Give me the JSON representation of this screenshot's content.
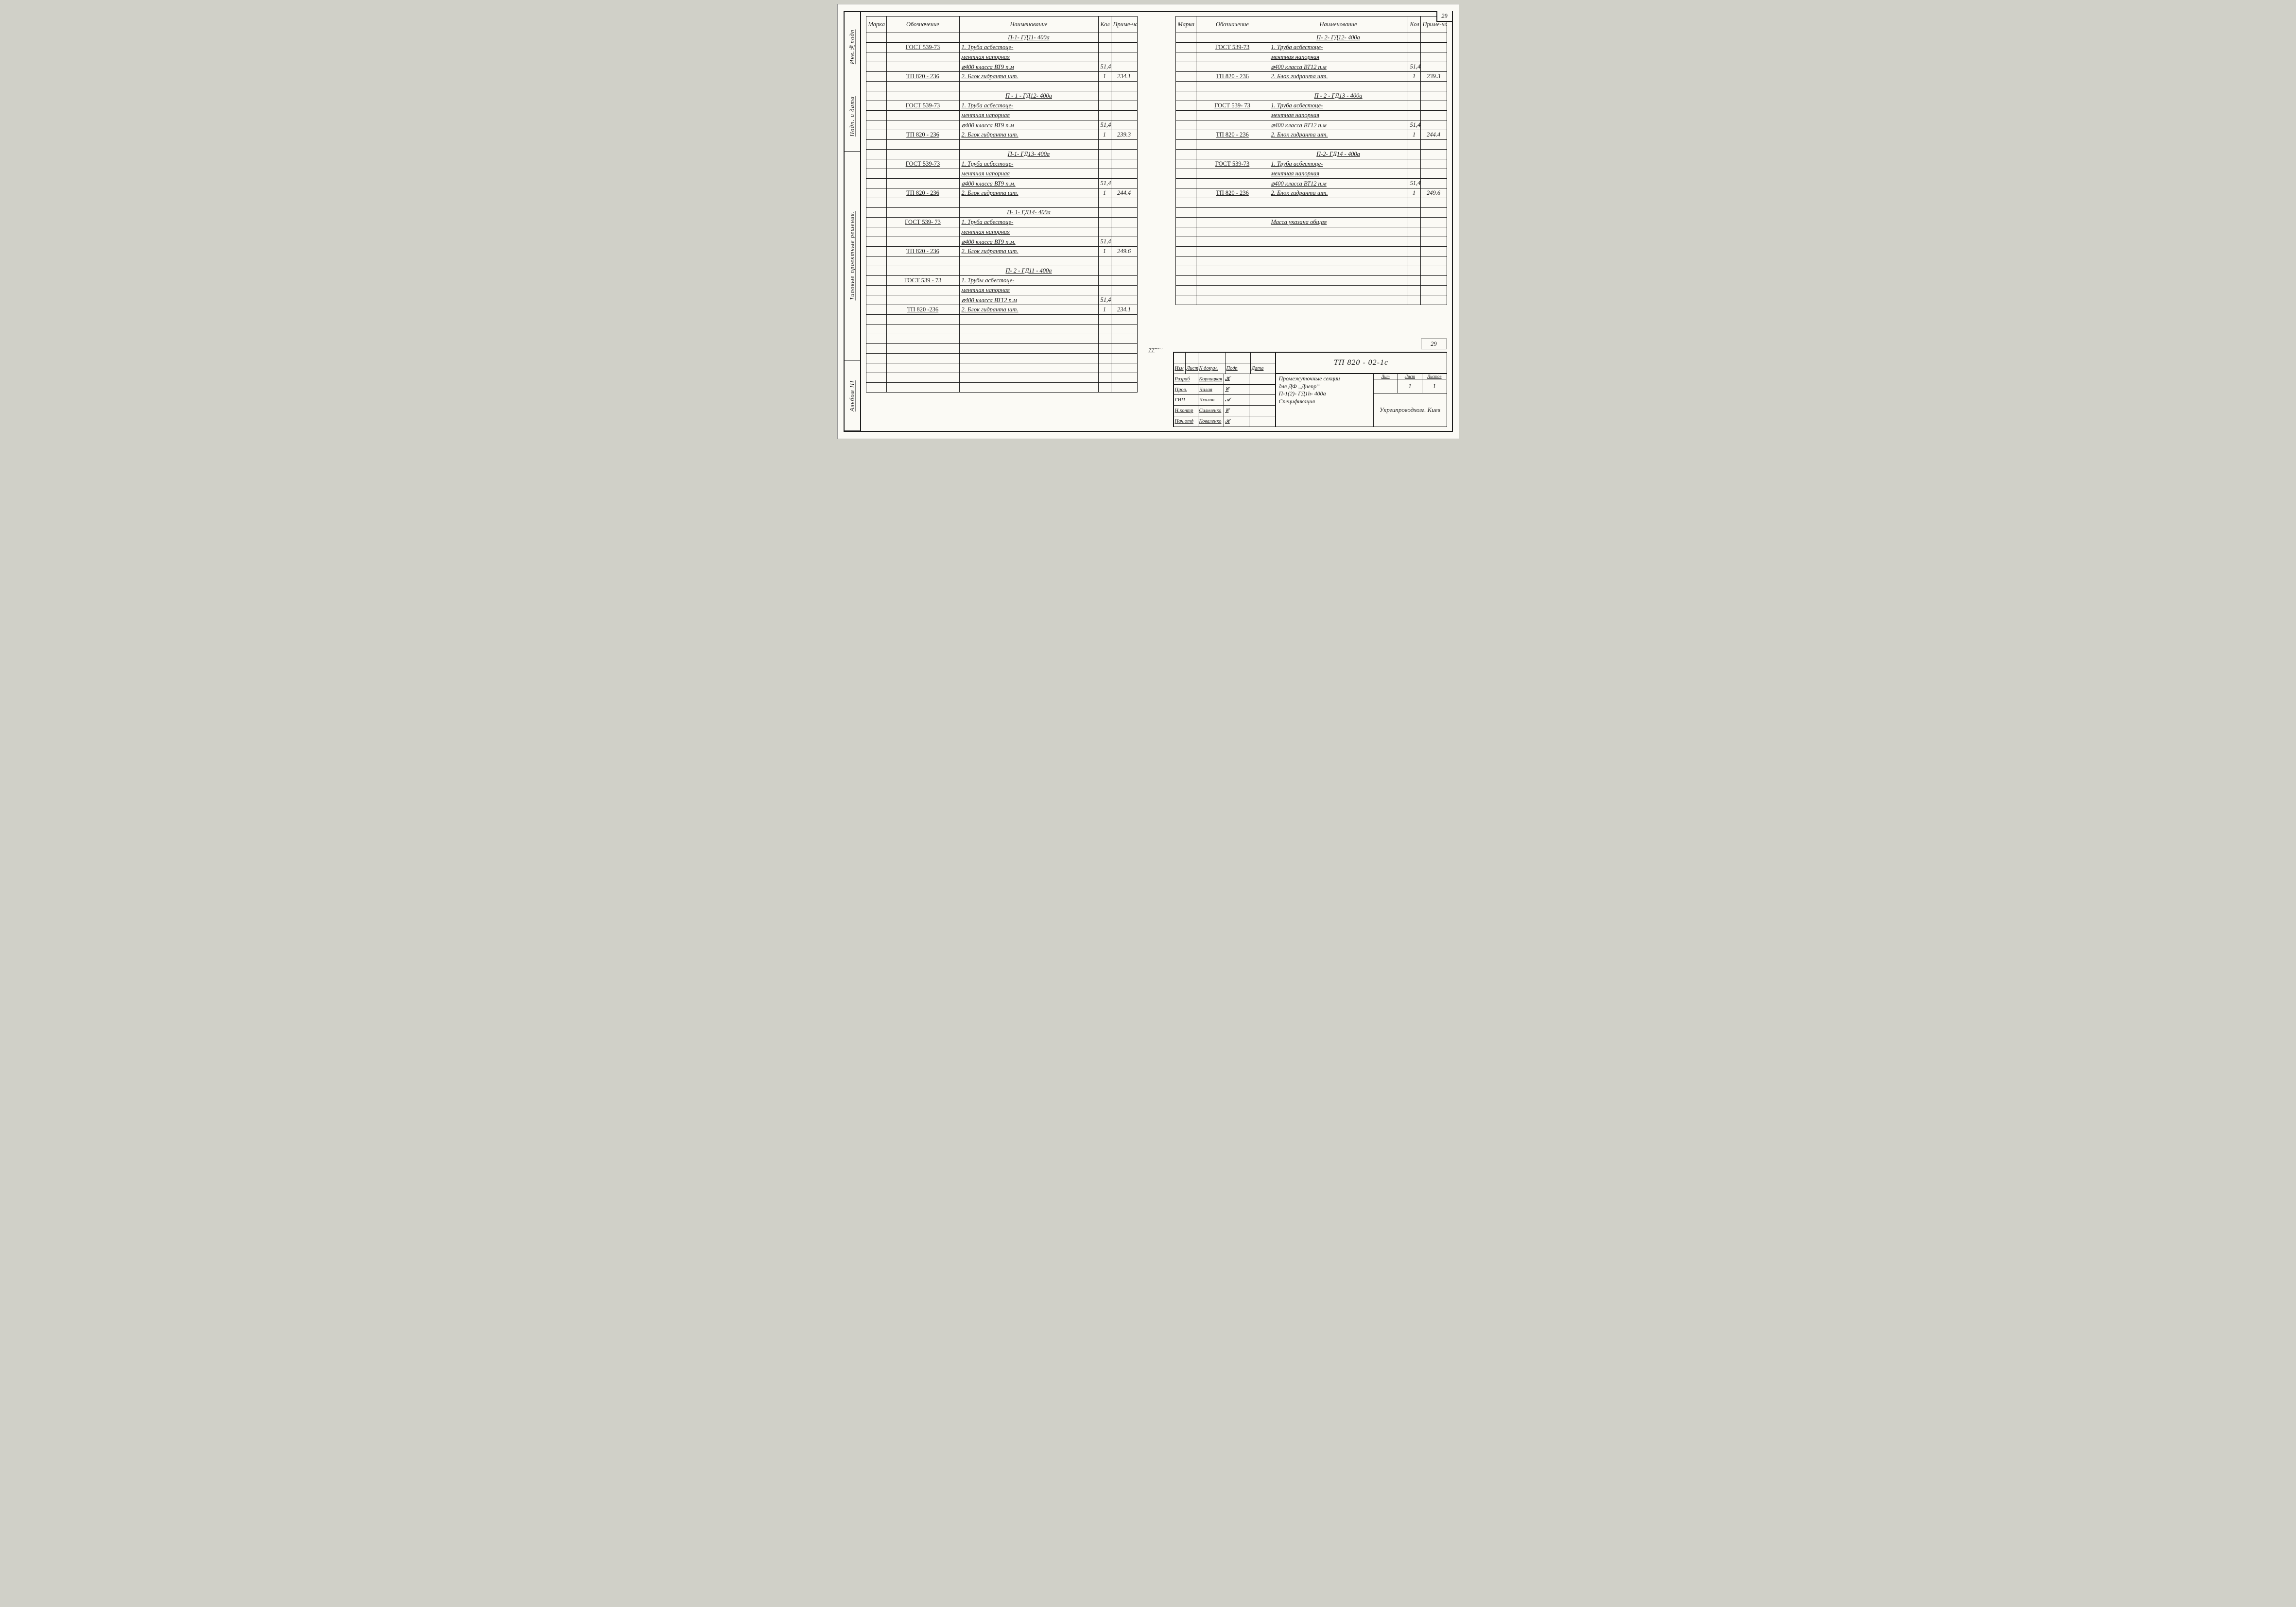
{
  "page_number": "29",
  "rail": [
    "Инв.№подп",
    "Подп. и дата",
    "Типовые проектные решения.",
    "Альбом III"
  ],
  "gutter_text": "7776/з",
  "headers": {
    "marka": "Марка",
    "oboz": "Обозначение",
    "naim": "Наименование",
    "kol": "Кол",
    "prim": "Приме-чание"
  },
  "left_rows": [
    {
      "naim": "П-1- ГД11- 400а",
      "cls": "title"
    },
    {
      "oboz": "ГОСТ 539-73",
      "naim": "1. Труба асбестоце-",
      "u": true
    },
    {
      "naim": "ментная напорная",
      "u": true
    },
    {
      "naim": "⌀400 класса ВТ9  п.м",
      "kol": "51,48",
      "u": true
    },
    {
      "oboz": "ТП 820 - 236",
      "naim": "2. Блок гидранта  шт.",
      "kol": "1",
      "prim": "234.1",
      "u": true
    },
    {},
    {
      "naim": "П - 1 - ГД12- 400а",
      "cls": "title"
    },
    {
      "oboz": "ГОСТ 539-73",
      "naim": "1. Труба асбестоце-",
      "u": true
    },
    {
      "naim": "ментная напорная",
      "u": true
    },
    {
      "naim": "⌀400 класса ВТ9  п.м",
      "kol": "51,48",
      "u": true
    },
    {
      "oboz": "ТП 820 - 236",
      "naim": "2. Блок гидранта  шт.",
      "kol": "1",
      "prim": "239.3",
      "u": true
    },
    {},
    {
      "naim": "П-1- ГД13- 400а",
      "cls": "title"
    },
    {
      "oboz": "ГОСТ 539-73",
      "naim": "1. Труба асбестоце-",
      "u": true
    },
    {
      "naim": "ментная напорная",
      "u": true
    },
    {
      "naim": "⌀400 класса ВТ9  п.м.",
      "kol": "51,48",
      "u": true
    },
    {
      "oboz": "ТП 820 - 236",
      "naim": "2. Блок гидранта  шт.",
      "kol": "1",
      "prim": "244.4",
      "u": true
    },
    {},
    {
      "naim": "П- 1- ГД14-  400а",
      "cls": "title"
    },
    {
      "oboz": "ГОСТ 539- 73",
      "naim": "1. Труба асбестоце-",
      "u": true
    },
    {
      "naim": "ментная напорная",
      "u": true
    },
    {
      "naim": "⌀400 класса ВТ9  п.м.",
      "kol": "51,48",
      "u": true
    },
    {
      "oboz": "ТП 820 - 236",
      "naim": "2. Блок гидранта  шт.",
      "kol": "1",
      "prim": "249.6",
      "u": true
    },
    {},
    {
      "naim": "П- 2 - ГД11 - 400а",
      "cls": "title"
    },
    {
      "oboz": "ГОСТ 539 - 73",
      "naim": "1. Трубы асбестоце-",
      "u": true
    },
    {
      "naim": "ментная напорная",
      "u": true
    },
    {
      "naim": "⌀400  класса ВТ12 п.м",
      "kol": "51,48",
      "u": true
    },
    {
      "oboz": "ТП 820 -236",
      "naim": "2. Блок гидранта  шт.",
      "kol": "1",
      "prim": "234.1",
      "u": true
    },
    {}
  ],
  "right_rows": [
    {
      "naim": "П- 2- ГД12- 400а",
      "cls": "title"
    },
    {
      "oboz": "ГОСТ 539-73",
      "naim": "1. Труба асбестоце-",
      "u": true
    },
    {
      "naim": "ментная напорная",
      "u": true
    },
    {
      "naim": "⌀400 класса ВТ12  п.м",
      "kol": "51,48",
      "u": true
    },
    {
      "oboz": "ТП 820 - 236",
      "naim": "2. Блок гидранта  шт.",
      "kol": "1",
      "prim": "239.3",
      "u": true
    },
    {},
    {
      "naim": "П - 2 - ГД13 - 400а",
      "cls": "title"
    },
    {
      "oboz": "ГОСТ 539- 73",
      "naim": "1. Труба асбестоце-",
      "u": true
    },
    {
      "naim": "ментная напорная",
      "u": true
    },
    {
      "naim": "⌀400  класса ВТ12  п.м",
      "kol": "51,48",
      "u": true
    },
    {
      "oboz": "ТП 820 - 236",
      "naim": "2. Блок гидранта  шт.",
      "kol": "1",
      "prim": "244.4",
      "u": true
    },
    {},
    {
      "naim": "П-2- ГД14 - 400а",
      "cls": "title"
    },
    {
      "oboz": "ГОСТ 539-73",
      "naim": "1. Труба  асбестоце-",
      "u": true
    },
    {
      "naim": "ментная  напорная",
      "u": true
    },
    {
      "naim": "⌀400 класса  ВТ12 п.м",
      "kol": "51,48",
      "u": true
    },
    {
      "oboz": "ТП  820 - 236",
      "naim": "2. Блок гидранта  шт.",
      "kol": "1",
      "prim": "249.6",
      "u": true
    },
    {},
    {},
    {
      "naim": "Масса указана общая",
      "u": true
    },
    {},
    {}
  ],
  "sheet_num_overlay": "29",
  "titleblock": {
    "code": "ТП   820 - 02-1с",
    "title_lines": [
      "Промежуточные секции",
      "для  ДФ „Днепр”",
      "П-1(2)- ГД1h- 400а",
      "Спецификация"
    ],
    "meta": {
      "lit": "Лит",
      "list": "Лист",
      "listov": "Листов",
      "list_val": "1",
      "listov_val": "1"
    },
    "org_lines": [
      "Укргипроводхоз",
      "г. Киев"
    ],
    "sign_head": {
      "izm": "Изм",
      "list": "Лист",
      "doc": "N докум.",
      "sign": "Подп",
      "date": "Дата"
    },
    "sign_rows": [
      {
        "role": "Разраб",
        "name": "Корницкая",
        "sig": "𝓚"
      },
      {
        "role": "Пров.",
        "name": "Чалая",
        "sig": "𝓒"
      },
      {
        "role": "ГИП",
        "name": "Чхалов",
        "sig": "𝓐"
      },
      {
        "role": "Н.контр",
        "name": "Сильченко",
        "sig": "𝓒"
      },
      {
        "role": "Нач.отд",
        "name": "Коваленко",
        "sig": "𝓚"
      }
    ]
  }
}
